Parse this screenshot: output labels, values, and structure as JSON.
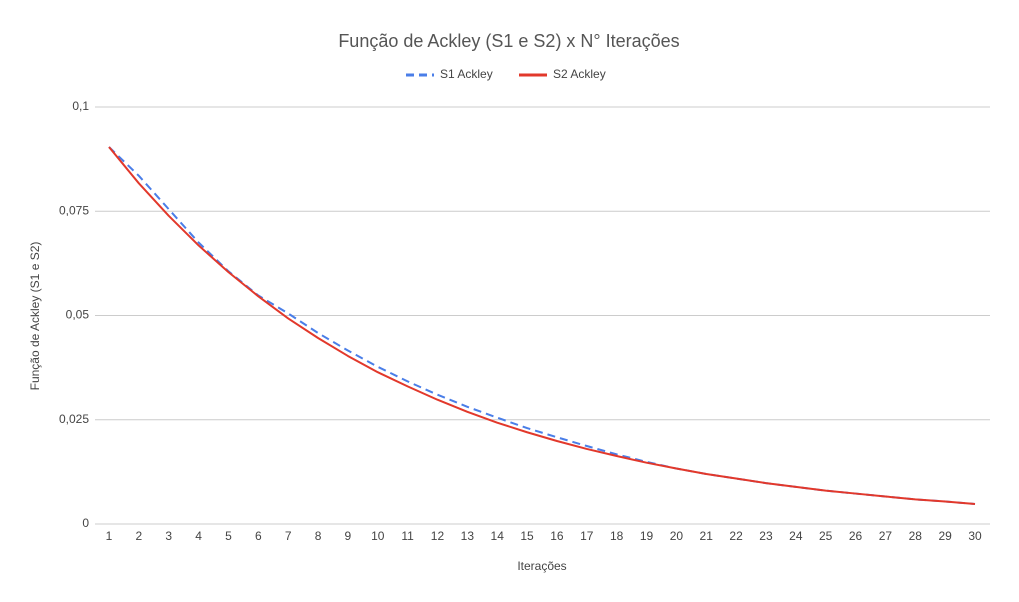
{
  "chart_data": {
    "type": "line",
    "title": "Função de Ackley (S1 e S2) x N° Iterações",
    "x_label": "Iterações",
    "y_label": "Função de Ackley (S1 e S2)",
    "x": [
      1,
      2,
      3,
      4,
      5,
      6,
      7,
      8,
      9,
      10,
      11,
      12,
      13,
      14,
      15,
      16,
      17,
      18,
      19,
      20,
      21,
      22,
      23,
      24,
      25,
      26,
      27,
      28,
      29,
      30
    ],
    "ylim": [
      0,
      0.1
    ],
    "yticks": [
      0,
      {
        "value": 0.025,
        "label": "0,025"
      },
      {
        "value": 0.05,
        "label": "0,05"
      },
      {
        "value": 0.075,
        "label": "0,075"
      },
      {
        "value": 0.1,
        "label": "0,1"
      }
    ],
    "grid": true,
    "legend": "top",
    "series": [
      {
        "name": "S1 Ackley",
        "color": "#4a7ee8",
        "dashed": true,
        "values": [
          0.0904,
          0.0835,
          0.0755,
          0.0675,
          0.0606,
          0.0548,
          0.0505,
          0.0458,
          0.0416,
          0.0377,
          0.0342,
          0.031,
          0.0281,
          0.0255,
          0.023,
          0.0208,
          0.0187,
          0.0167,
          0.0149,
          0.0133,
          0.012,
          0.0109,
          0.0098,
          0.0089,
          0.008,
          0.0073,
          0.0066,
          0.0059,
          0.0054,
          0.0048
        ]
      },
      {
        "name": "S2 Ackley",
        "color": "#e2382b",
        "dashed": false,
        "values": [
          0.0904,
          0.0817,
          0.0739,
          0.0668,
          0.0604,
          0.0546,
          0.0493,
          0.0446,
          0.0403,
          0.0364,
          0.033,
          0.0298,
          0.0269,
          0.0243,
          0.022,
          0.0199,
          0.018,
          0.0163,
          0.0147,
          0.0133,
          0.012,
          0.0109,
          0.0098,
          0.0089,
          0.008,
          0.0073,
          0.0066,
          0.0059,
          0.0054,
          0.0048
        ]
      }
    ]
  }
}
